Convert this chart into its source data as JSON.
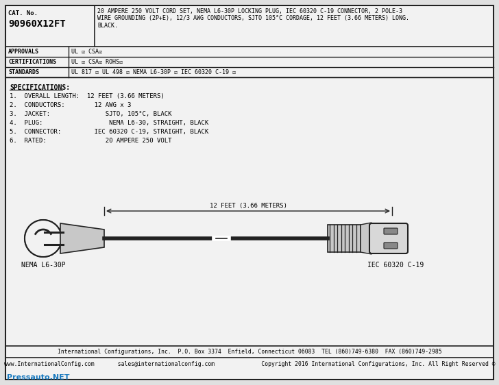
{
  "bg_color": "#e0e0e0",
  "inner_bg": "#f2f2f2",
  "cat_no": "90960X12FT",
  "cat_label": "CAT. No.",
  "description": "20 AMPERE 250 VOLT CORD SET, NEMA L6-30P LOCKING PLUG, IEC 60320 C-19 CONNECTOR, 2 POLE-3\nWIRE GROUNDING (2P+E), 12/3 AWG CONDUCTORS, SJTO 105°C CORDAGE, 12 FEET (3.66 METERS) LONG.\nBLACK.",
  "approvals_label": "APPROVALS",
  "approvals_val": "UL ☑ CSA☑",
  "cert_label": "CERTIFICATIONS",
  "cert_val": "UL ☑ CSA☑ ROHS☑",
  "std_label": "STANDARDS",
  "std_val": "UL 817 ☑ UL 498 ☑ NEMA L6-30P ☑ IEC 60320 C-19 ☑",
  "specs_title": "SPECIFICATIONS:",
  "specs": [
    "1.  OVERALL LENGTH:  12 FEET (3.66 METERS)",
    "2.  CONDUCTORS:        12 AWG x 3",
    "3.  JACKET:               SJTO, 105°C, BLACK",
    "4.  PLUG:                  NEMA L6-30, STRAIGHT, BLACK",
    "5.  CONNECTOR:         IEC 60320 C-19, STRAIGHT, BLACK",
    "6.  RATED:                20 AMPERE 250 VOLT"
  ],
  "dimension_label": "12 FEET (3.66 METERS)",
  "left_connector_label": "NEMA L6-30P",
  "right_connector_label": "IEC 60320 C-19",
  "footer1": "International Configurations, Inc.  P.O. Box 3374  Enfield, Connecticut 06083  TEL (860)749-6380  FAX (860)749-2985",
  "footer2": "www.InternationalConfig.com       sales@internationalconfig.com              Copyright 2016 International Configurations, Inc. All Right Reserved ©",
  "watermark": "Pressauto.NET",
  "line_color": "#222222",
  "text_color": "#000000"
}
